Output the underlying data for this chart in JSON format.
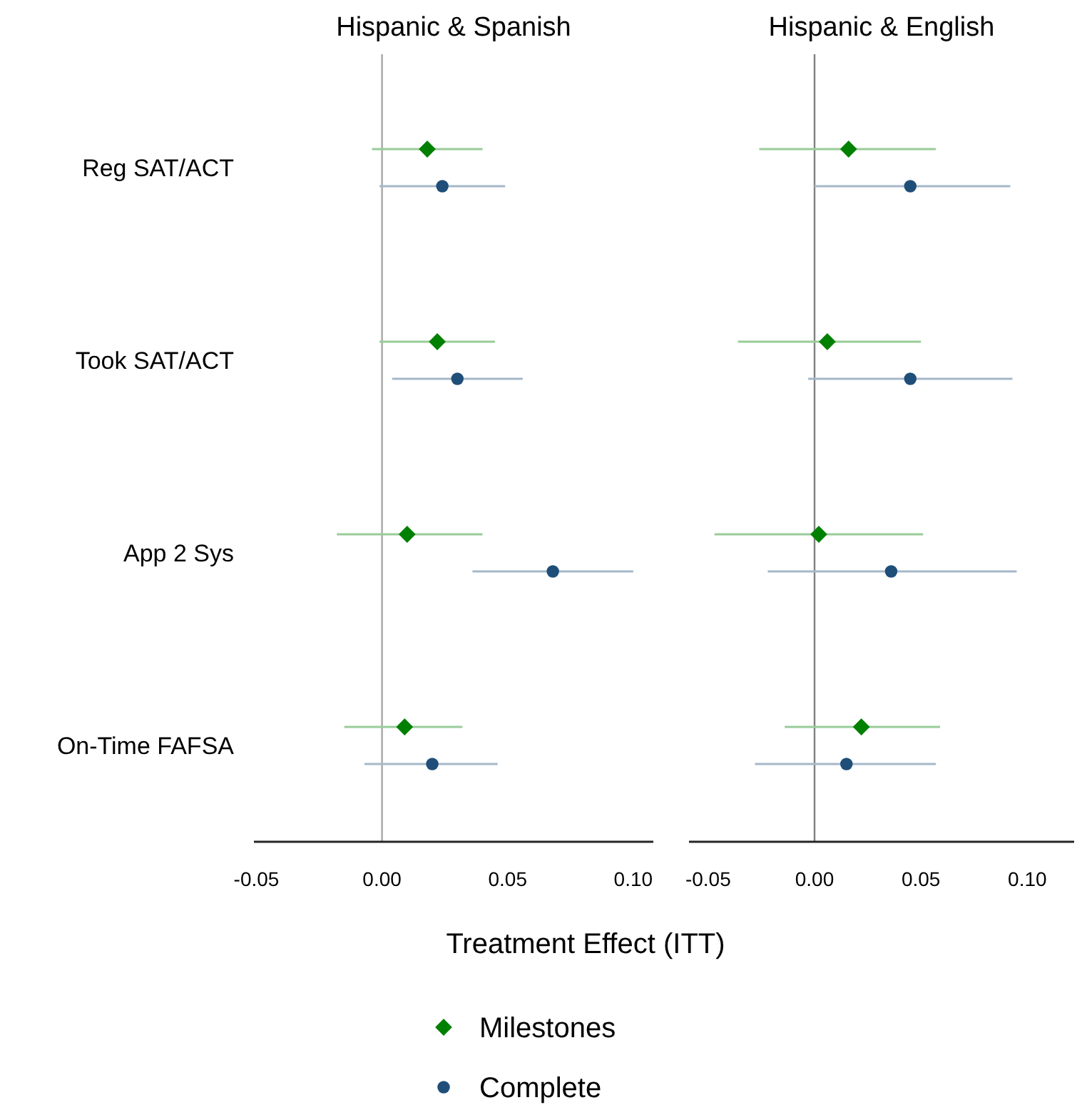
{
  "chart_data": [
    {
      "type": "scatter",
      "title": "Hispanic & Spanish",
      "xlabel": "Treatment Effect (ITT)",
      "orientation": "horizontal",
      "categories": [
        "Reg SAT/ACT",
        "Took SAT/ACT",
        "App 2 Sys",
        "On-Time FAFSA"
      ],
      "xlim": [
        -0.051,
        0.108
      ],
      "xticks": [
        {
          "value": -0.05,
          "label": "-0.05"
        },
        {
          "value": 0,
          "label": "0.00"
        },
        {
          "value": 0.05,
          "label": "0.05"
        },
        {
          "value": 0.1,
          "label": "0.10"
        }
      ],
      "legend": "bottom",
      "grid": false,
      "ref_lines": [
        {
          "axis": "x",
          "value": 0,
          "color": "#a6a6a6"
        }
      ],
      "series": [
        {
          "name": "Milestones",
          "color": "#008000",
          "marker": "diamond",
          "values": [
            0.018,
            0.022,
            0.01,
            0.009
          ],
          "errors": [
            [
              -0.004,
              0.04
            ],
            [
              -0.001,
              0.045
            ],
            [
              -0.018,
              0.04
            ],
            [
              -0.015,
              0.032
            ]
          ]
        },
        {
          "name": "Complete",
          "color": "#1f4e79",
          "marker": "circle",
          "values": [
            0.024,
            0.03,
            0.068,
            0.02
          ],
          "errors": [
            [
              -0.001,
              0.049
            ],
            [
              0.004,
              0.056
            ],
            [
              0.036,
              0.1
            ],
            [
              -0.007,
              0.046
            ]
          ]
        }
      ]
    },
    {
      "type": "scatter",
      "title": "Hispanic & English",
      "orientation": "horizontal",
      "categories": [
        "Reg SAT/ACT",
        "Took SAT/ACT",
        "App 2 Sys",
        "On-Time FAFSA"
      ],
      "tick_labels": "x",
      "xlim": [
        -0.059,
        0.122
      ],
      "xticks": [
        {
          "value": -0.05,
          "label": "-0.05"
        },
        {
          "value": 0,
          "label": "0.00"
        },
        {
          "value": 0.05,
          "label": "0.05"
        },
        {
          "value": 0.1,
          "label": "0.10"
        }
      ],
      "grid": false,
      "ref_lines": [
        {
          "axis": "x",
          "value": 0,
          "color": "#808080"
        }
      ],
      "series": [
        {
          "name": "Milestones",
          "color": "#008000",
          "marker": "diamond",
          "values": [
            0.016,
            0.006,
            0.002,
            0.022
          ],
          "errors": [
            [
              -0.026,
              0.057
            ],
            [
              -0.036,
              0.05
            ],
            [
              -0.047,
              0.051
            ],
            [
              -0.014,
              0.059
            ]
          ]
        },
        {
          "name": "Complete",
          "color": "#1f4e79",
          "marker": "circle",
          "values": [
            0.045,
            0.045,
            0.036,
            0.015
          ],
          "errors": [
            [
              0.0,
              0.092
            ],
            [
              -0.003,
              0.093
            ],
            [
              -0.022,
              0.095
            ],
            [
              -0.028,
              0.057
            ]
          ]
        }
      ]
    }
  ]
}
